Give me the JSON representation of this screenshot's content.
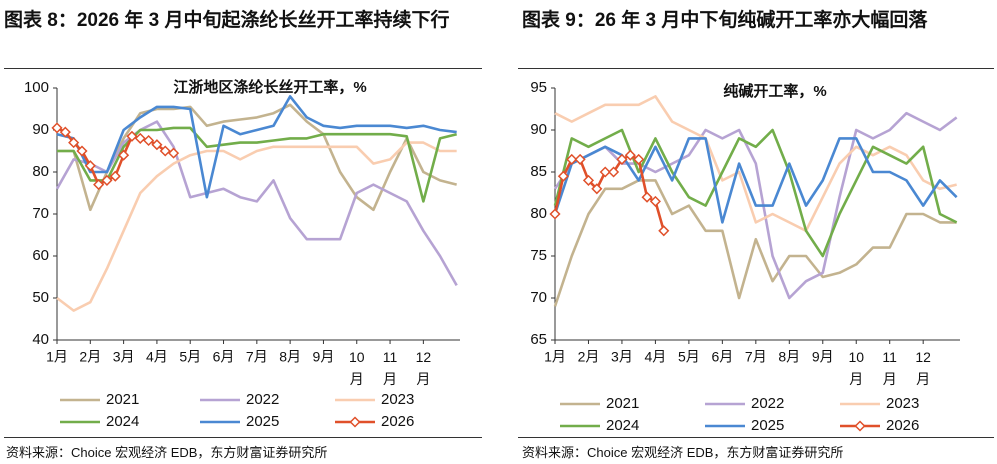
{
  "chart_data": [
    {
      "type": "line",
      "title": "图表 8：2026 年 3 月中旬起涤纶长丝开工率持续下行",
      "subtitle": "江浙地区涤纶长丝开工率，%",
      "source": "资料来源：Choice 宏观经济 EDB，东方财富证券研究所",
      "xlim": [
        1,
        13.1
      ],
      "xticks": [
        {
          "value": 1,
          "label": "1月"
        },
        {
          "value": 2,
          "label": "2月"
        },
        {
          "value": 3,
          "label": "3月"
        },
        {
          "value": 4,
          "label": "4月"
        },
        {
          "value": 5,
          "label": "5月"
        },
        {
          "value": 6,
          "label": "6月"
        },
        {
          "value": 7,
          "label": "7月"
        },
        {
          "value": 8,
          "label": "8月"
        },
        {
          "value": 9,
          "label": "9月"
        },
        {
          "value": 10,
          "label": "10月"
        },
        {
          "value": 11,
          "label": "11月"
        },
        {
          "value": 12,
          "label": "12月"
        }
      ],
      "ylim": [
        40,
        100
      ],
      "yticks": [
        40,
        50,
        60,
        70,
        80,
        90,
        100
      ],
      "x": [
        1,
        1.5,
        2,
        2.5,
        3,
        3.5,
        4,
        4.5,
        5,
        5.5,
        6,
        6.5,
        7,
        7.5,
        8,
        8.5,
        9,
        9.5,
        10,
        10.5,
        11,
        11.5,
        12,
        12.5,
        13
      ],
      "series": [
        {
          "name": "2021",
          "color": "#c3b38f",
          "values": [
            85,
            85,
            71,
            80,
            88,
            94,
            95,
            95,
            95.5,
            91,
            92,
            92.5,
            93,
            94,
            96,
            92,
            89,
            80,
            74,
            71,
            80,
            88,
            80,
            78,
            77
          ]
        },
        {
          "name": "2022",
          "color": "#b6a3d3",
          "values": [
            76,
            83,
            82,
            80,
            87,
            90,
            92,
            86,
            74,
            75,
            76,
            74,
            73,
            78,
            69,
            64,
            64,
            64,
            75,
            77,
            75,
            73,
            66,
            60,
            53
          ]
        },
        {
          "name": "2023",
          "color": "#f9cdb0",
          "values": [
            50,
            47,
            49,
            57,
            66,
            75,
            79,
            82,
            84,
            85,
            85,
            83,
            85,
            86,
            86,
            86,
            86,
            86,
            86,
            82,
            83,
            87,
            87,
            85,
            85
          ]
        },
        {
          "name": "2024",
          "color": "#72ad4a",
          "values": [
            85,
            85,
            78,
            78,
            86,
            90,
            90,
            90.5,
            90.5,
            86,
            86.5,
            87,
            87,
            87.5,
            88,
            88,
            89,
            89,
            89,
            89,
            89,
            88.5,
            73,
            88,
            89
          ]
        },
        {
          "name": "2025",
          "color": "#4a88d2",
          "values": [
            89,
            88,
            80,
            80,
            90,
            93,
            95.5,
            95.5,
            95,
            74,
            91,
            89,
            90,
            91,
            98,
            93,
            91,
            90.5,
            91,
            91,
            91,
            90.5,
            91,
            90,
            89.5
          ]
        },
        {
          "name": "2026",
          "color": "#e0502a",
          "marker": "diamond",
          "x": [
            1,
            1.25,
            1.5,
            1.75,
            2,
            2.25,
            2.5,
            2.75,
            3,
            3.25,
            3.5,
            3.75,
            4,
            4.25,
            4.5
          ],
          "values": [
            90.5,
            89.5,
            87,
            85,
            81.5,
            77,
            78,
            79,
            84,
            88.5,
            88,
            87.5,
            86.5,
            85,
            84.5
          ]
        }
      ]
    },
    {
      "type": "line",
      "title": "图表 9：26 年 3 月中下旬纯碱开工率亦大幅回落",
      "subtitle": "纯碱开工率，%",
      "source": "资料来源：Choice 宏观经济 EDB，东方财富证券研究所",
      "xlim": [
        1,
        13.1
      ],
      "xticks": [
        {
          "value": 1,
          "label": "1月"
        },
        {
          "value": 2,
          "label": "2月"
        },
        {
          "value": 3,
          "label": "3月"
        },
        {
          "value": 4,
          "label": "4月"
        },
        {
          "value": 5,
          "label": "5月"
        },
        {
          "value": 6,
          "label": "6月"
        },
        {
          "value": 7,
          "label": "7月"
        },
        {
          "value": 8,
          "label": "8月"
        },
        {
          "value": 9,
          "label": "9月"
        },
        {
          "value": 10,
          "label": "10月"
        },
        {
          "value": 11,
          "label": "11月"
        },
        {
          "value": 12,
          "label": "12月"
        }
      ],
      "ylim": [
        65,
        95
      ],
      "yticks": [
        65,
        70,
        75,
        80,
        85,
        90,
        95
      ],
      "x": [
        1,
        1.5,
        2,
        2.5,
        3,
        3.5,
        4,
        4.5,
        5,
        5.5,
        6,
        6.5,
        7,
        7.5,
        8,
        8.5,
        9,
        9.5,
        10,
        10.5,
        11,
        11.5,
        12,
        12.5,
        13
      ],
      "series": [
        {
          "name": "2021",
          "color": "#c3b38f",
          "values": [
            69,
            75,
            80,
            83,
            83,
            84,
            84,
            80,
            81,
            78,
            78,
            70,
            77,
            72,
            75,
            75,
            72.5,
            73,
            74,
            76,
            76,
            80,
            80,
            79,
            79
          ]
        },
        {
          "name": "2022",
          "color": "#b6a3d3",
          "values": [
            83,
            86,
            87,
            88,
            86,
            86,
            85,
            86,
            87,
            90,
            89,
            90,
            86,
            75,
            70,
            72,
            73,
            82,
            90,
            89,
            90,
            92,
            91,
            90,
            91.5
          ]
        },
        {
          "name": "2023",
          "color": "#f9cdb0",
          "values": [
            92,
            91,
            92,
            93,
            93,
            93,
            94,
            91,
            90,
            89,
            84,
            85,
            79,
            80,
            79,
            78,
            82,
            86,
            88,
            87,
            88,
            87,
            84,
            83,
            83.5
          ]
        },
        {
          "name": "2024",
          "color": "#72ad4a",
          "values": [
            81,
            89,
            88,
            89,
            90,
            85,
            89,
            85,
            82,
            81,
            85,
            89,
            88,
            90,
            85,
            78,
            75,
            80,
            84,
            88,
            87,
            86,
            88,
            80,
            79
          ]
        },
        {
          "name": "2025",
          "color": "#4a88d2",
          "values": [
            80,
            86,
            87,
            88,
            87,
            84,
            88,
            84,
            89,
            89,
            79,
            86,
            81,
            81,
            86,
            81,
            84,
            89,
            89,
            85,
            85,
            84,
            81,
            84,
            82
          ]
        },
        {
          "name": "2026",
          "color": "#e0502a",
          "marker": "diamond",
          "x": [
            1,
            1.25,
            1.5,
            1.75,
            2,
            2.25,
            2.5,
            2.75,
            3,
            3.25,
            3.5,
            3.75,
            4,
            4.25
          ],
          "values": [
            80,
            84.5,
            86.5,
            86.5,
            84,
            83,
            85,
            85,
            86.5,
            87,
            86.5,
            82,
            81.5,
            78
          ]
        }
      ]
    }
  ]
}
